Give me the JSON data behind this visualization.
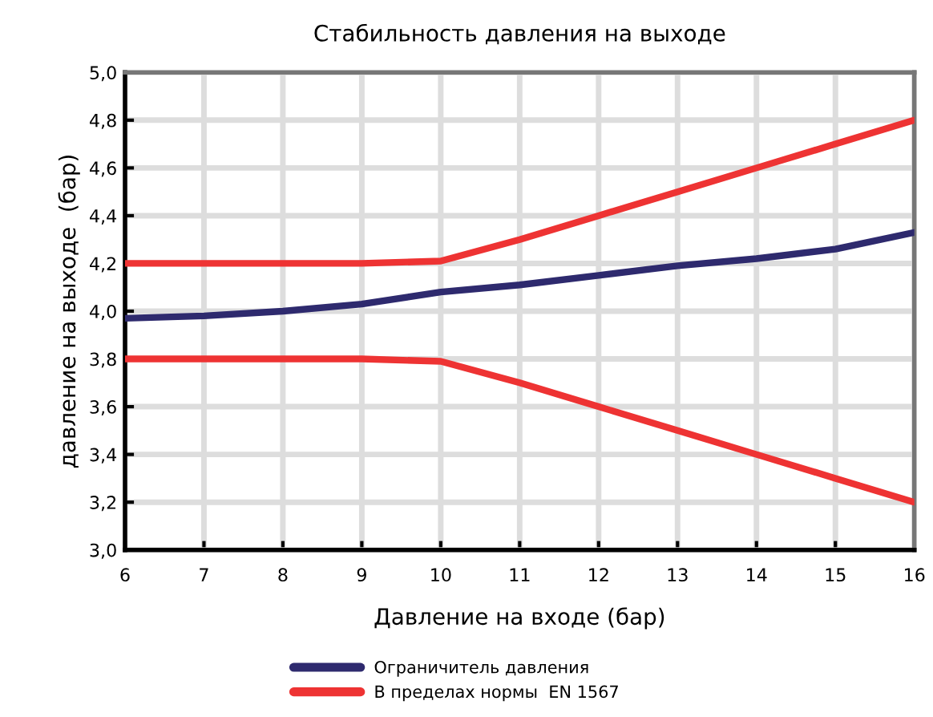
{
  "chart_data": {
    "type": "line",
    "title": "Стабильность давления на выходе",
    "xlabel": "Давление на входе (бар)",
    "ylabel": "давление на выходе  (бар)",
    "x": [
      6,
      7,
      8,
      9,
      10,
      11,
      12,
      13,
      14,
      15,
      16
    ],
    "series": [
      {
        "name": "Ограничитель давления",
        "color": "#2e2a6e",
        "values": [
          3.97,
          3.98,
          4.0,
          4.03,
          4.08,
          4.11,
          4.15,
          4.19,
          4.22,
          4.26,
          4.33
        ]
      },
      {
        "name": "В пределах нормы  EN 1567",
        "color": "#ee3333",
        "values": [
          4.2,
          4.2,
          4.2,
          4.2,
          4.21,
          4.3,
          4.4,
          4.5,
          4.6,
          4.7,
          4.8
        ]
      },
      {
        "color": "#ee3333",
        "values": [
          3.8,
          3.8,
          3.8,
          3.8,
          3.79,
          3.7,
          3.6,
          3.5,
          3.4,
          3.3,
          3.2
        ]
      }
    ],
    "xlim": [
      6,
      16
    ],
    "xticks": [
      6,
      7,
      8,
      9,
      10,
      11,
      12,
      13,
      14,
      15,
      16
    ],
    "ylim": [
      3.0,
      5.0
    ],
    "yticks": [
      {
        "value": 3.0,
        "label": "3,0"
      },
      {
        "value": 3.2,
        "label": "3,2"
      },
      {
        "value": 3.4,
        "label": "3,4"
      },
      {
        "value": 3.6,
        "label": "3,6"
      },
      {
        "value": 3.8,
        "label": "3,8"
      },
      {
        "value": 4.0,
        "label": "4,0"
      },
      {
        "value": 4.2,
        "label": "4,2"
      },
      {
        "value": 4.4,
        "label": "4,4"
      },
      {
        "value": 4.6,
        "label": "4,6"
      },
      {
        "value": 4.8,
        "label": "4,8"
      },
      {
        "value": 5.0,
        "label": "5,0"
      }
    ],
    "grid": true,
    "legend": "bottom",
    "marker": "none",
    "line_style": "solid"
  }
}
